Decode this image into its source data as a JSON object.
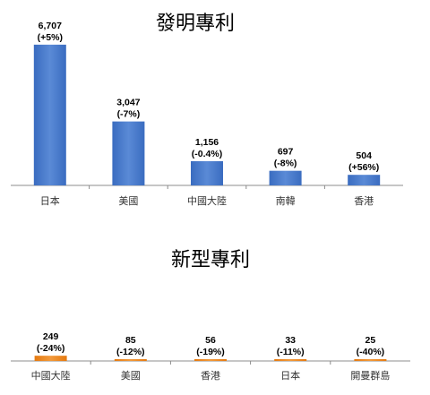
{
  "chart_data": [
    {
      "type": "bar",
      "title": "發明專利",
      "categories": [
        "日本",
        "美國",
        "中國大陸",
        "南韓",
        "香港"
      ],
      "values": [
        6707,
        3047,
        1156,
        697,
        504
      ],
      "value_labels": [
        "6,707",
        "3,047",
        "1,156",
        "697",
        "504"
      ],
      "change_labels": [
        "(+5%)",
        "(-7%)",
        "(-0.4%)",
        "(-8%)",
        "(+56%)"
      ],
      "ylim": [
        0,
        7000
      ],
      "grid": false,
      "legend": "none",
      "color": "#3a6cc0",
      "color_light": "#5a8ad6"
    },
    {
      "type": "bar",
      "title": "新型專利",
      "categories": [
        "中國大陸",
        "美國",
        "香港",
        "日本",
        "開曼群島"
      ],
      "values": [
        249,
        85,
        56,
        33,
        25
      ],
      "value_labels": [
        "249",
        "85",
        "56",
        "33",
        "25"
      ],
      "change_labels": [
        "(-24%)",
        "(-12%)",
        "(-19%)",
        "(-11%)",
        "(-40%)"
      ],
      "ylim": [
        0,
        7000
      ],
      "grid": false,
      "legend": "none",
      "color": "#e57a10",
      "color_light": "#f29a3c"
    }
  ]
}
